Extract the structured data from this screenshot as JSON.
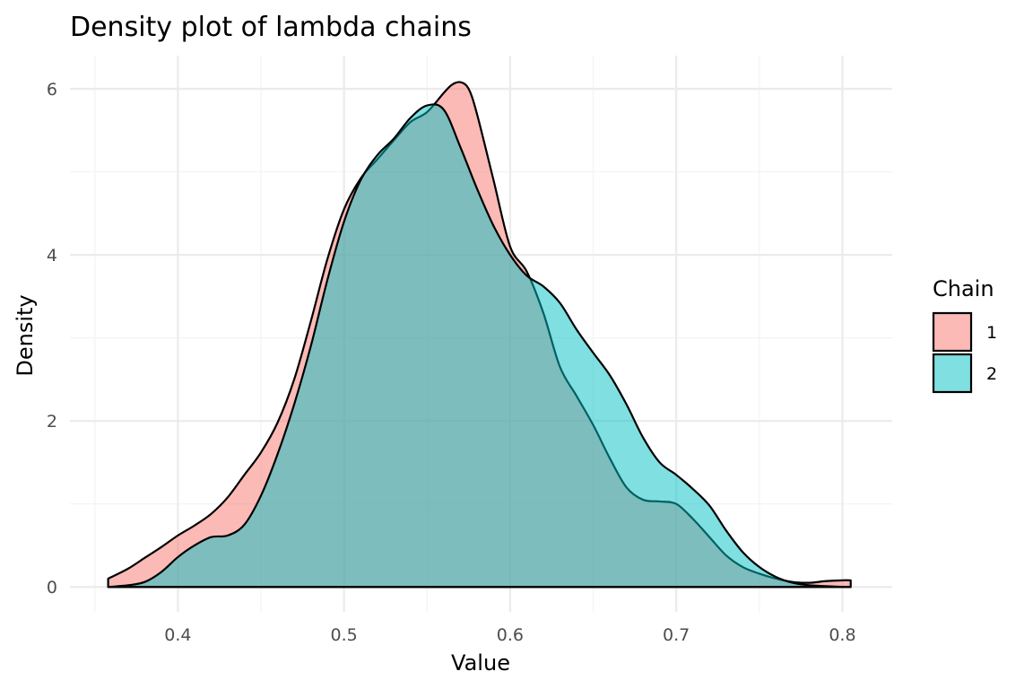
{
  "chart_data": {
    "type": "area",
    "title": "Density plot of lambda chains",
    "xlabel": "Value",
    "ylabel": "Density",
    "xlim": [
      0.335,
      0.83
    ],
    "ylim": [
      -0.3,
      6.4
    ],
    "x_ticks": [
      0.4,
      0.5,
      0.6,
      0.7,
      0.8
    ],
    "x_tick_labels": [
      "0.4",
      "0.5",
      "0.6",
      "0.7",
      "0.8"
    ],
    "y_ticks": [
      0,
      2,
      4,
      6
    ],
    "y_tick_labels": [
      "0",
      "2",
      "4",
      "6"
    ],
    "grid": true,
    "legend": {
      "title": "Chain",
      "placement": "right"
    },
    "series": [
      {
        "name": "1",
        "color": "#F8766D",
        "opacity": 0.5,
        "x": [
          0.358,
          0.37,
          0.38,
          0.39,
          0.4,
          0.41,
          0.42,
          0.43,
          0.44,
          0.45,
          0.46,
          0.47,
          0.48,
          0.49,
          0.5,
          0.51,
          0.52,
          0.53,
          0.54,
          0.55,
          0.56,
          0.565,
          0.57,
          0.575,
          0.58,
          0.59,
          0.6,
          0.61,
          0.62,
          0.63,
          0.64,
          0.65,
          0.66,
          0.67,
          0.68,
          0.69,
          0.7,
          0.71,
          0.72,
          0.73,
          0.74,
          0.75,
          0.76,
          0.77,
          0.78,
          0.79,
          0.8,
          0.805
        ],
        "y": [
          0.1,
          0.22,
          0.35,
          0.48,
          0.62,
          0.74,
          0.88,
          1.08,
          1.35,
          1.62,
          1.98,
          2.5,
          3.2,
          3.95,
          4.55,
          4.92,
          5.15,
          5.38,
          5.6,
          5.72,
          5.95,
          6.05,
          6.08,
          6.0,
          5.7,
          4.9,
          4.1,
          3.8,
          3.3,
          2.65,
          2.3,
          1.95,
          1.55,
          1.2,
          1.05,
          1.03,
          1.0,
          0.82,
          0.6,
          0.38,
          0.24,
          0.16,
          0.1,
          0.06,
          0.05,
          0.07,
          0.08,
          0.08
        ]
      },
      {
        "name": "2",
        "color": "#00BFC4",
        "opacity": 0.5,
        "x": [
          0.358,
          0.37,
          0.38,
          0.39,
          0.4,
          0.41,
          0.42,
          0.43,
          0.44,
          0.45,
          0.46,
          0.47,
          0.48,
          0.49,
          0.5,
          0.51,
          0.52,
          0.53,
          0.54,
          0.55,
          0.56,
          0.57,
          0.58,
          0.59,
          0.6,
          0.61,
          0.62,
          0.63,
          0.64,
          0.65,
          0.66,
          0.67,
          0.68,
          0.69,
          0.7,
          0.71,
          0.72,
          0.73,
          0.74,
          0.75,
          0.76,
          0.77,
          0.78,
          0.79,
          0.8,
          0.805
        ],
        "y": [
          0.0,
          0.02,
          0.06,
          0.18,
          0.36,
          0.5,
          0.6,
          0.62,
          0.75,
          1.1,
          1.6,
          2.2,
          2.9,
          3.7,
          4.4,
          4.9,
          5.2,
          5.4,
          5.65,
          5.8,
          5.75,
          5.3,
          4.8,
          4.35,
          4.0,
          3.75,
          3.62,
          3.42,
          3.1,
          2.82,
          2.55,
          2.2,
          1.8,
          1.5,
          1.35,
          1.18,
          0.98,
          0.68,
          0.42,
          0.24,
          0.12,
          0.05,
          0.02,
          0.01,
          0.0,
          0.0
        ]
      }
    ]
  }
}
